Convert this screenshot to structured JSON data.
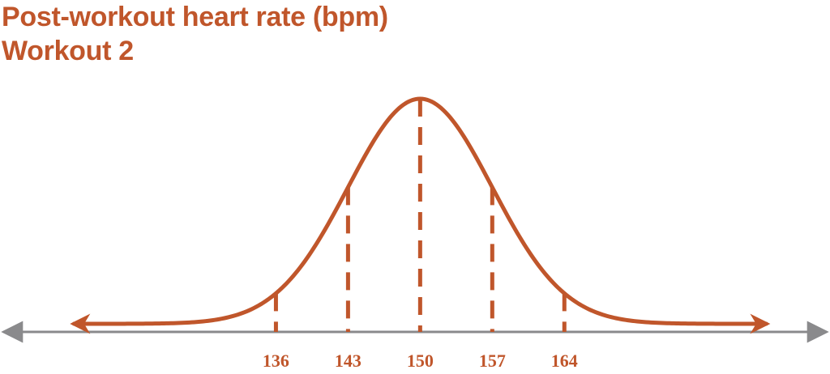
{
  "colors": {
    "accent": "#C0562B",
    "axis": "#8A8A8C"
  },
  "chart_data": {
    "type": "area",
    "title": "Post-workout heart rate (bpm)",
    "subtitle": "Workout 2",
    "distribution": "normal",
    "mean": 150,
    "sd": 7,
    "xlabel": "",
    "ylabel": "",
    "xlim": [
      110,
      189
    ],
    "ticks": [
      136,
      143,
      150,
      157,
      164
    ],
    "tick_labels": [
      "136",
      "143",
      "150",
      "157",
      "164"
    ],
    "grid": false,
    "legend": "none"
  }
}
